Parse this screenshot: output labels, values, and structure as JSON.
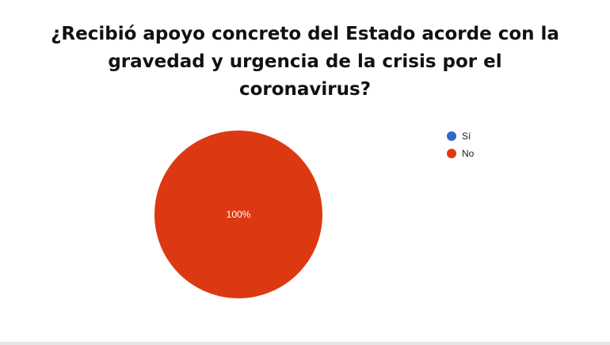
{
  "chart_data": {
    "type": "pie",
    "title": "¿Recibió apoyo concreto del Estado acorde con la\ngravedad y urgencia de la crisis por el\ncoronavirus?",
    "categories": [
      "Sí",
      "No"
    ],
    "values": [
      0,
      100
    ],
    "value_labels": [
      "",
      "100%"
    ],
    "colors": [
      "#3366cc",
      "#dc3912"
    ],
    "legend_position": "right"
  }
}
